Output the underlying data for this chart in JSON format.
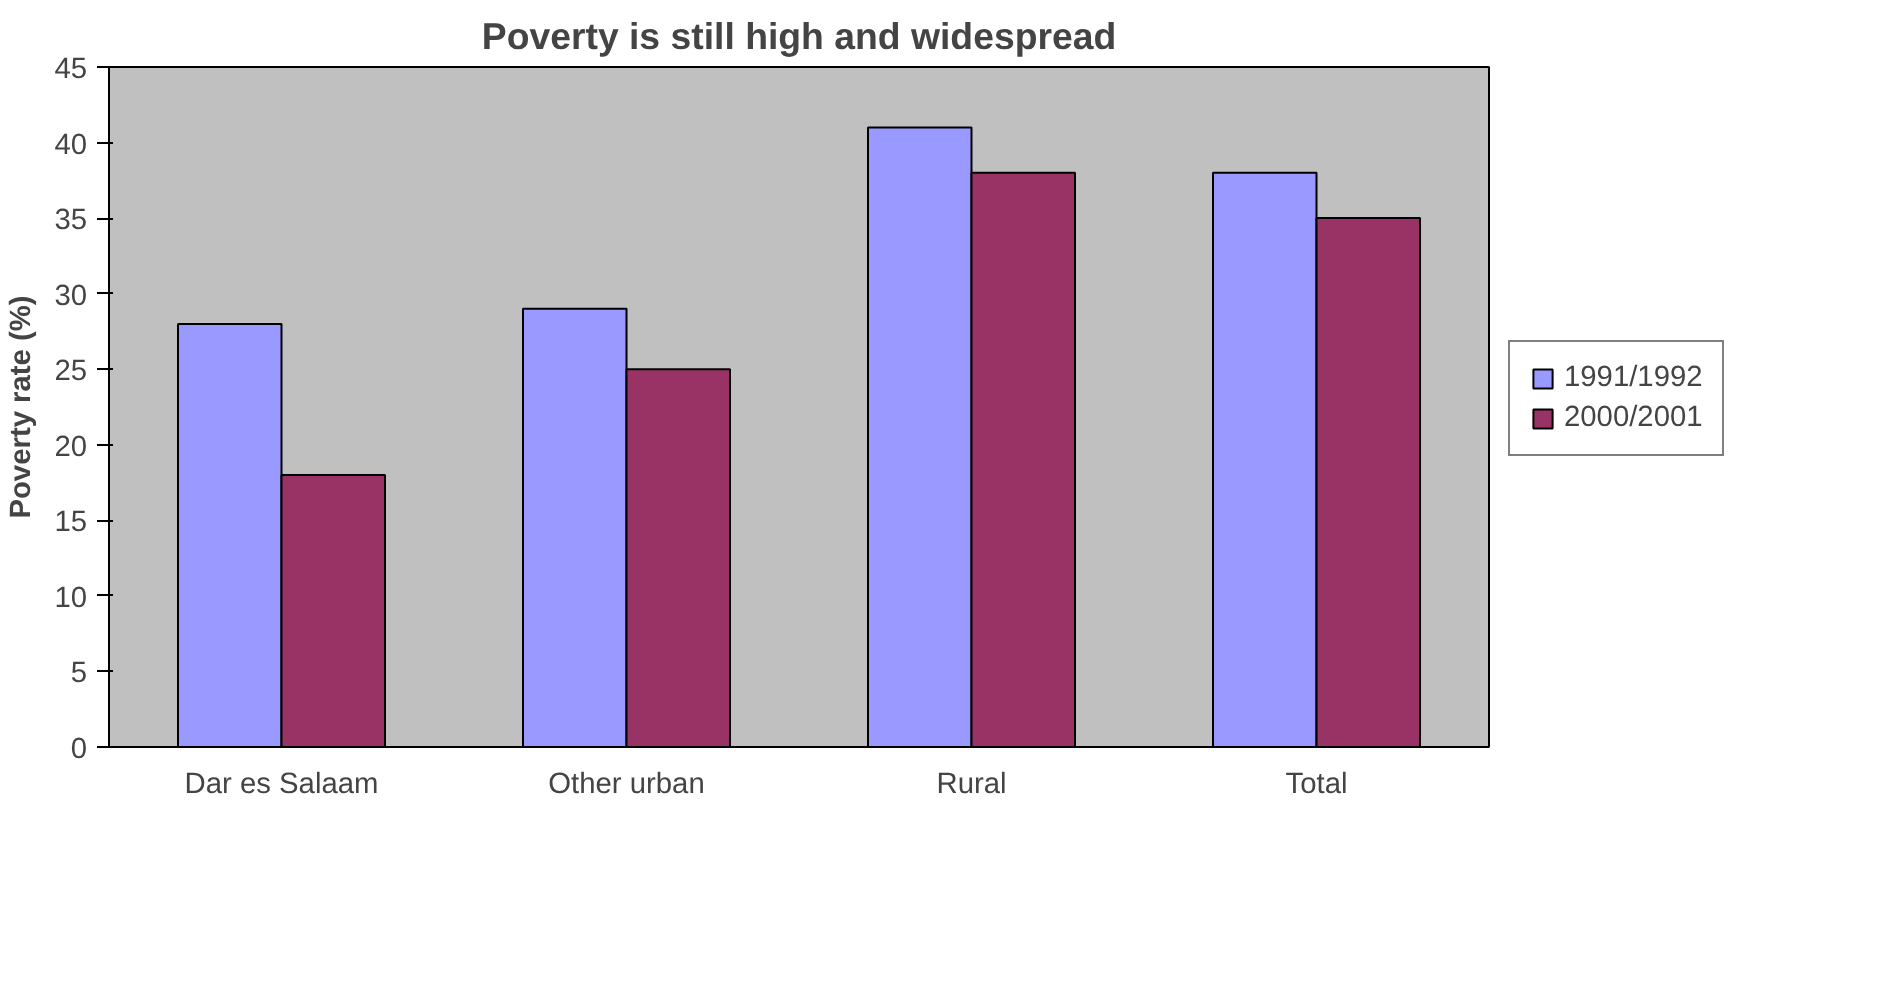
{
  "chart_data": {
    "type": "bar",
    "title": "Poverty is still high and widespread",
    "ylabel": "Poverty rate (%)",
    "categories": [
      "Dar es Salaam",
      "Other urban",
      "Rural",
      "Total"
    ],
    "series": [
      {
        "name": "1991/1992",
        "color": "#9999ff",
        "values": [
          28,
          29,
          41,
          38
        ]
      },
      {
        "name": "2000/2001",
        "color": "#993366",
        "values": [
          18,
          25,
          38,
          35
        ]
      }
    ],
    "ylim": [
      0,
      45
    ],
    "yticks": [
      0,
      5,
      10,
      15,
      20,
      25,
      30,
      35,
      40,
      45
    ],
    "grid": false,
    "legend": "right"
  }
}
